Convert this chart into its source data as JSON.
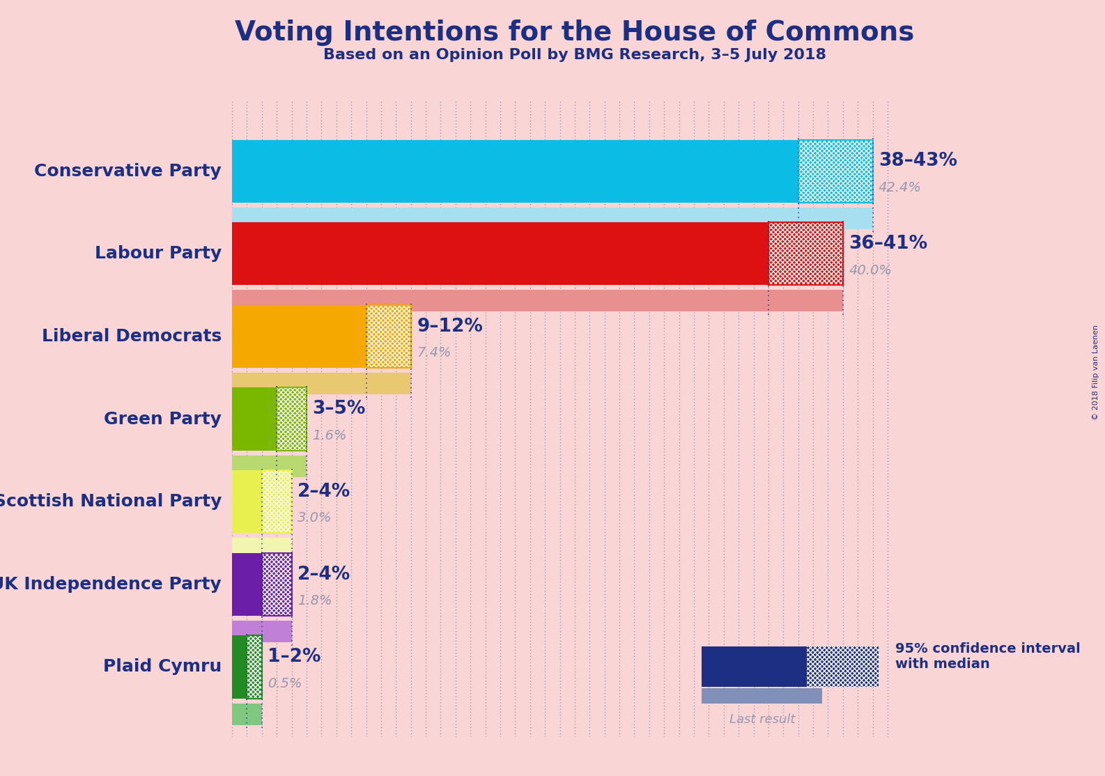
{
  "title": "Voting Intentions for the House of Commons",
  "subtitle": "Based on an Opinion Poll by BMG Research, 3–5 July 2018",
  "copyright": "© 2018 Filip van Laenen",
  "bg_color": "#f9d5d5",
  "dark_blue": "#1c2f82",
  "label_gray": "#9898b0",
  "parties": [
    {
      "name": "Conservative Party",
      "solid_color": "#0bbde4",
      "last_color": "#a8dff0",
      "median": 42.4,
      "ci_low": 38,
      "ci_high": 43,
      "label": "38–43%",
      "sublabel": "42.4%"
    },
    {
      "name": "Labour Party",
      "solid_color": "#dd1111",
      "last_color": "#e89090",
      "median": 40.0,
      "ci_low": 36,
      "ci_high": 41,
      "label": "36–41%",
      "sublabel": "40.0%"
    },
    {
      "name": "Liberal Democrats",
      "solid_color": "#f5a800",
      "last_color": "#e8c870",
      "median": 7.4,
      "ci_low": 9,
      "ci_high": 12,
      "label": "9–12%",
      "sublabel": "7.4%"
    },
    {
      "name": "Green Party",
      "solid_color": "#7ab800",
      "last_color": "#b8d870",
      "median": 1.6,
      "ci_low": 3,
      "ci_high": 5,
      "label": "3–5%",
      "sublabel": "1.6%"
    },
    {
      "name": "Scottish National Party",
      "solid_color": "#e8f050",
      "last_color": "#f0f5b0",
      "median": 3.0,
      "ci_low": 2,
      "ci_high": 4,
      "label": "2–4%",
      "sublabel": "3.0%"
    },
    {
      "name": "UK Independence Party",
      "solid_color": "#6b1fa8",
      "last_color": "#c080d8",
      "median": 1.8,
      "ci_low": 2,
      "ci_high": 4,
      "label": "2–4%",
      "sublabel": "1.8%"
    },
    {
      "name": "Plaid Cymru",
      "solid_color": "#228b22",
      "last_color": "#80c880",
      "median": 0.5,
      "ci_low": 1,
      "ci_high": 2,
      "label": "1–2%",
      "sublabel": "0.5%"
    }
  ],
  "xmax": 44,
  "grid_step": 1,
  "legend_solid_color": "#1c2f82",
  "legend_last_color": "#8090b8"
}
